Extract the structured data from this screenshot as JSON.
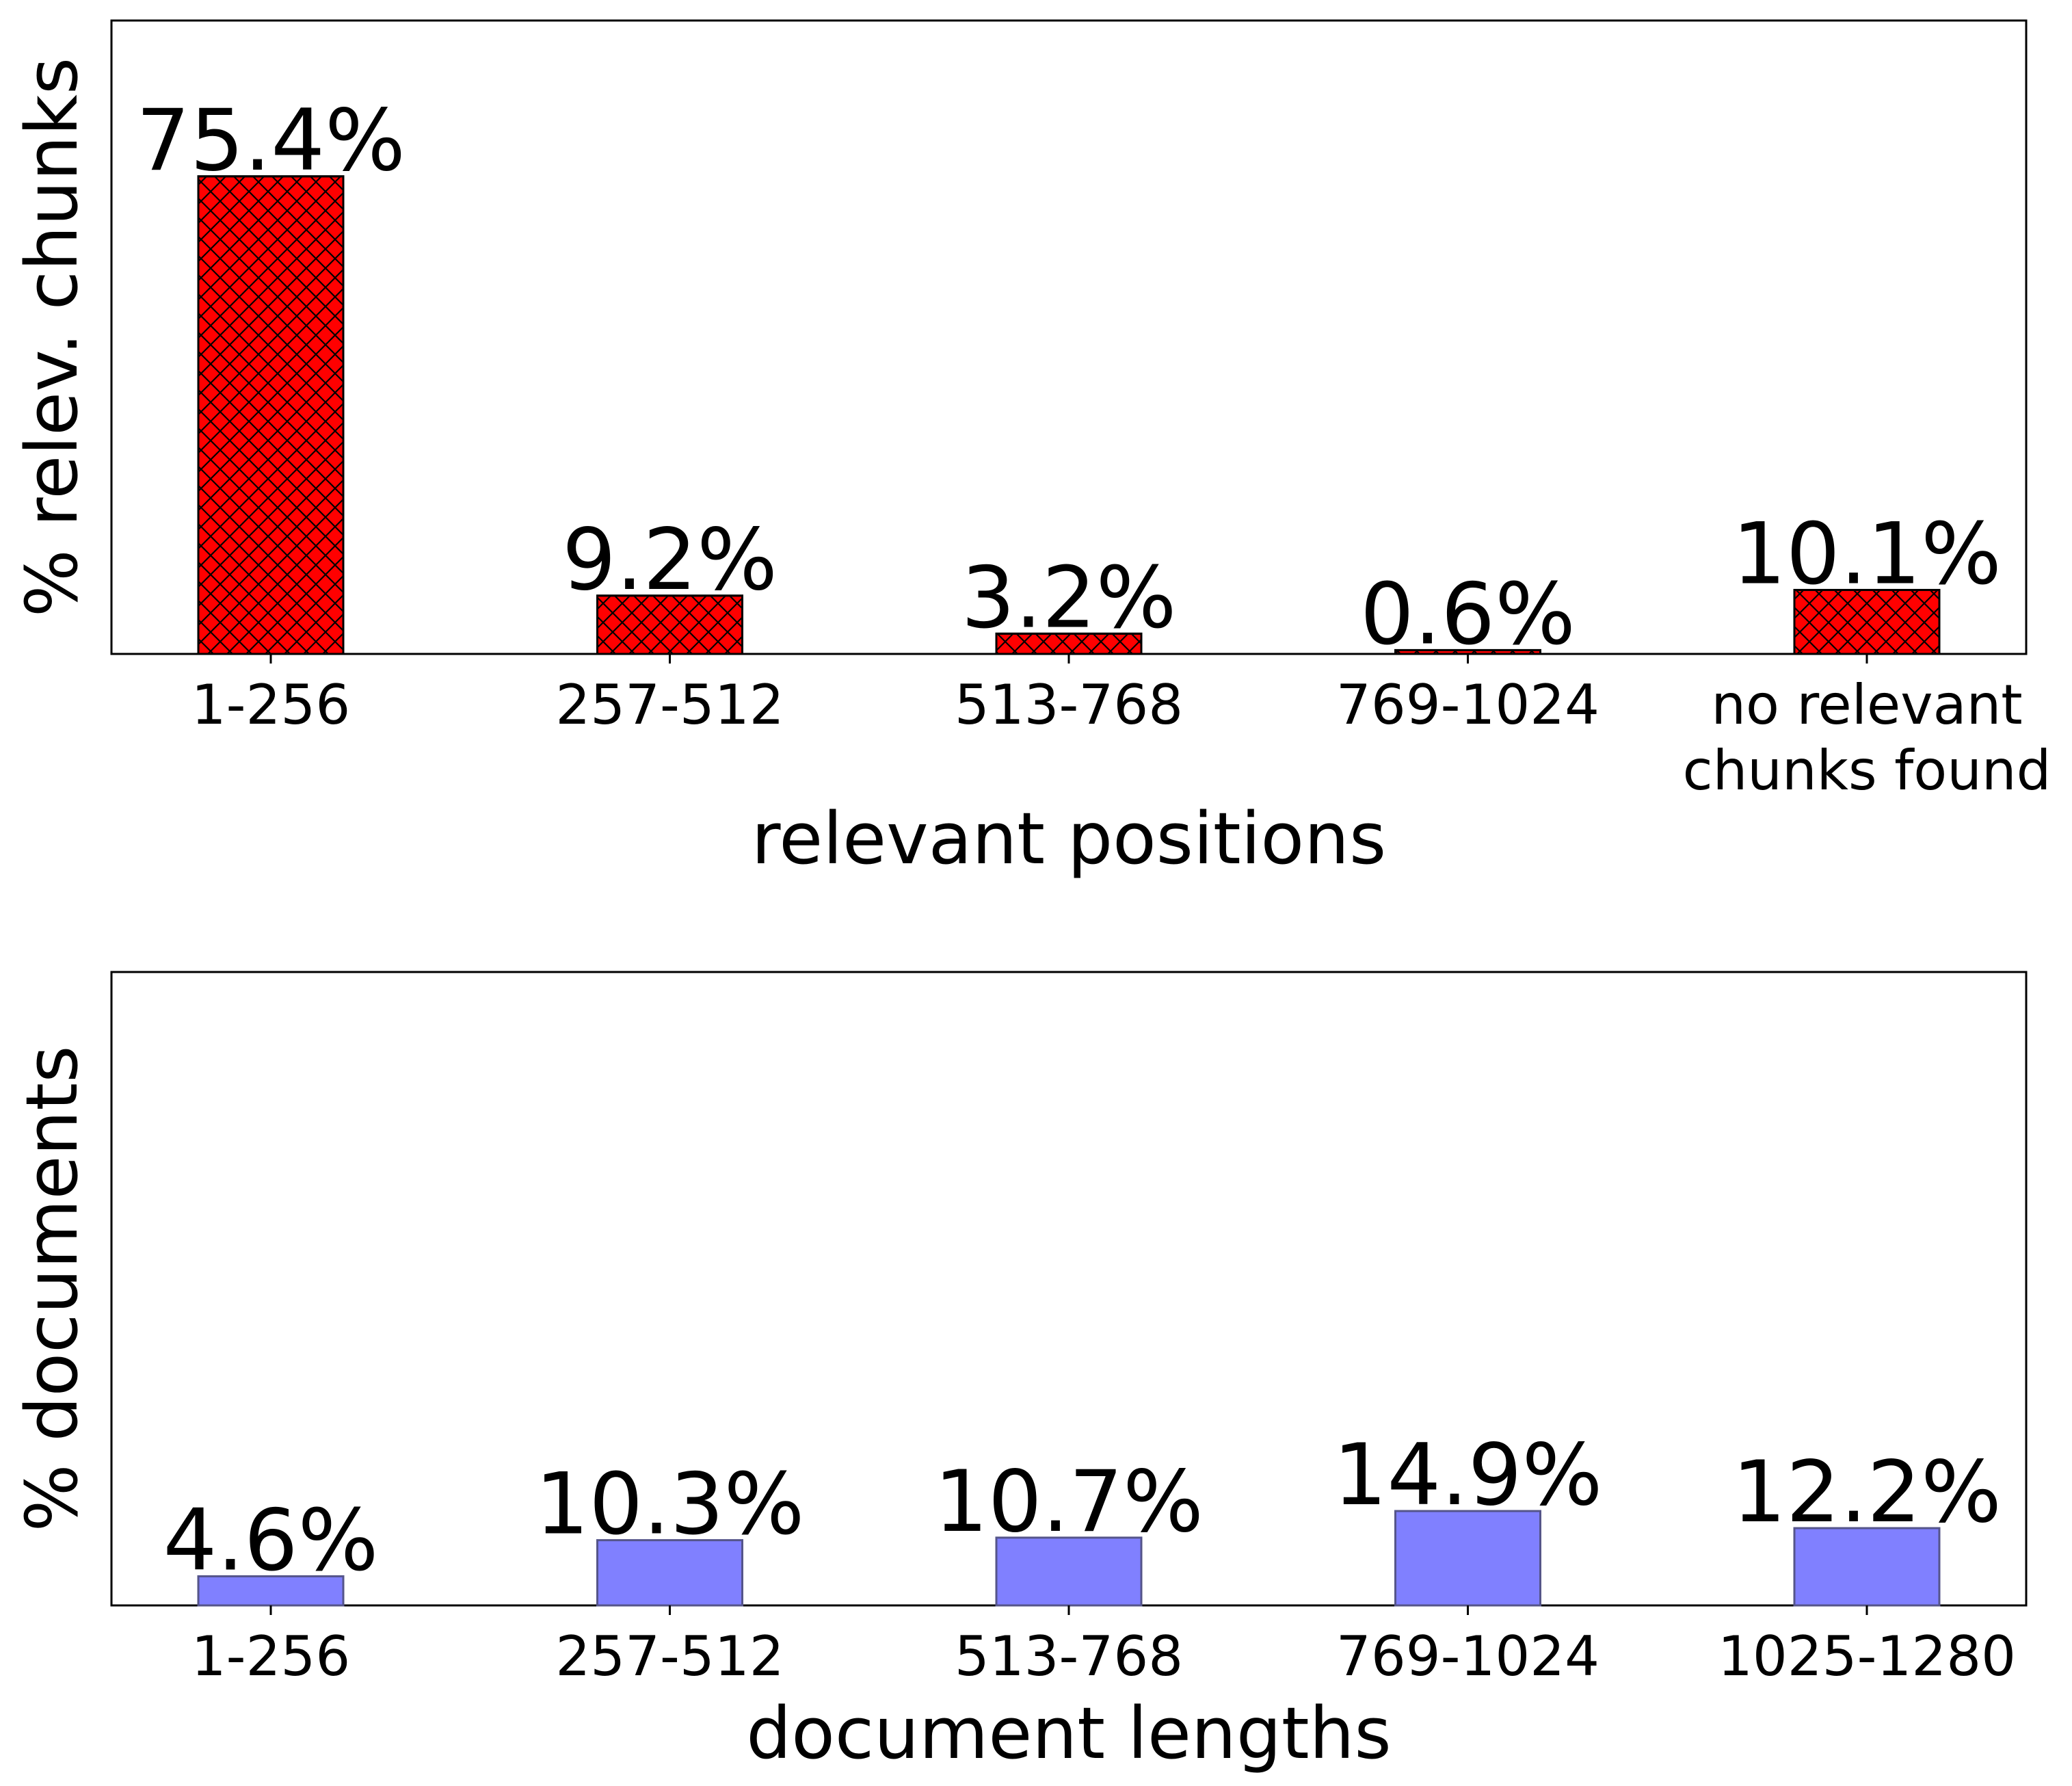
{
  "chart_data": [
    {
      "type": "bar",
      "categories": [
        "1-256",
        "257-512",
        "513-768",
        "769-1024",
        "no relevant\nchunks found"
      ],
      "values": [
        75.4,
        9.2,
        3.2,
        0.6,
        10.1
      ],
      "data_labels": [
        "75.4%",
        "9.2%",
        "3.2%",
        "0.6%",
        "10.1%"
      ],
      "xlabel": "relevant positions",
      "ylabel": "% relev. chunks",
      "ylim": [
        0,
        100
      ],
      "y_ticks_shown": false,
      "grid": false,
      "bar_color": "#ff0000",
      "bar_edge_color": "#000000",
      "hatch": "crosshatch"
    },
    {
      "type": "bar",
      "categories": [
        "1-256",
        "257-512",
        "513-768",
        "769-1024",
        "1025-1280"
      ],
      "values": [
        4.6,
        10.3,
        10.7,
        14.9,
        12.2
      ],
      "data_labels": [
        "4.6%",
        "10.3%",
        "10.7%",
        "14.9%",
        "12.2%"
      ],
      "xlabel": "document lengths",
      "ylabel": "% documents",
      "ylim": [
        0,
        100
      ],
      "y_ticks_shown": false,
      "grid": false,
      "bar_color": "#8080ff",
      "bar_edge_color": "#55558a",
      "hatch": "none"
    }
  ]
}
